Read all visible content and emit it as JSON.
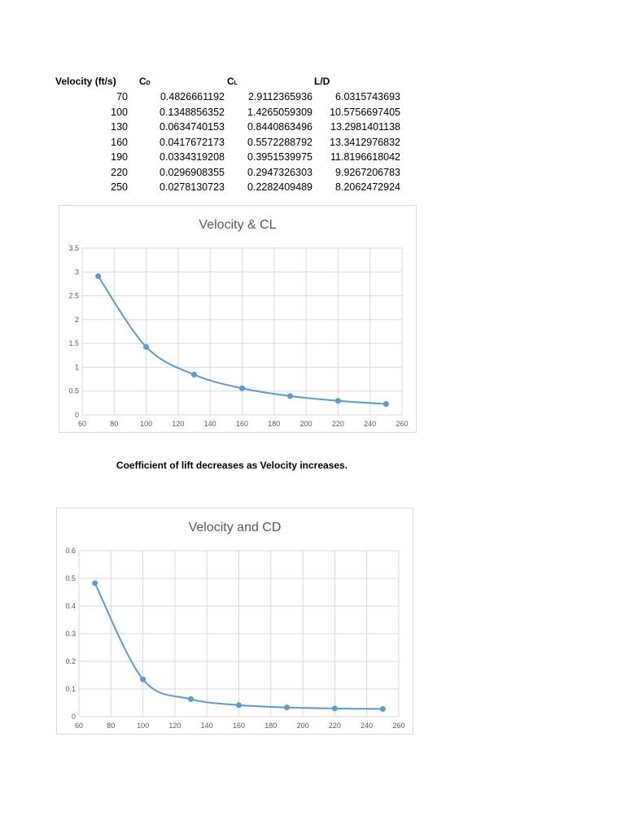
{
  "table": {
    "headers": [
      "Velocity (ft/s)",
      "C",
      "C",
      "L/D"
    ],
    "header_subscripts": [
      "",
      "D",
      "L",
      ""
    ],
    "rows": [
      {
        "velocity": "70",
        "cd": "0.4826661192",
        "cl": "2.9112365936",
        "ld": "6.0315743693"
      },
      {
        "velocity": "100",
        "cd": "0.1348856352",
        "cl": "1.4265059309",
        "ld": "10.5756697405"
      },
      {
        "velocity": "130",
        "cd": "0.0634740153",
        "cl": "0.8440863496",
        "ld": "13.2981401138"
      },
      {
        "velocity": "160",
        "cd": "0.0417672173",
        "cl": "0.5572288792",
        "ld": "13.3412976832"
      },
      {
        "velocity": "190",
        "cd": "0.0334319208",
        "cl": "0.3951539975",
        "ld": "11.8196618042"
      },
      {
        "velocity": "220",
        "cd": "0.0296908355",
        "cl": "0.2947326303",
        "ld": "9.9267206783"
      },
      {
        "velocity": "250",
        "cd": "0.0278130723",
        "cl": "0.2282409489",
        "ld": "8.2062472924"
      }
    ]
  },
  "caption": "Coefficient of lift decreases as Velocity increases.",
  "colors": {
    "series": "#5b9bd5",
    "grid": "#d9d9d9",
    "axis_text": "#595959"
  },
  "chart_data": [
    {
      "type": "line",
      "title": "Velocity & CL",
      "xlabel": "",
      "ylabel": "",
      "x": [
        70,
        100,
        130,
        160,
        190,
        220,
        250
      ],
      "series": [
        {
          "name": "CL",
          "values": [
            2.9112365936,
            1.4265059309,
            0.8440863496,
            0.5572288792,
            0.3951539975,
            0.2947326303,
            0.2282409489
          ]
        }
      ],
      "xlim": [
        60,
        260
      ],
      "ylim": [
        0,
        3.5
      ],
      "xticks": [
        "60",
        "80",
        "100",
        "120",
        "140",
        "160",
        "180",
        "200",
        "220",
        "240",
        "260"
      ],
      "yticks": [
        "0",
        "0.5",
        "1",
        "1.5",
        "2",
        "2.5",
        "3",
        "3.5"
      ],
      "grid": true,
      "smooth": true,
      "legend": "none"
    },
    {
      "type": "line",
      "title": "Velocity and CD",
      "xlabel": "",
      "ylabel": "",
      "x": [
        70,
        100,
        130,
        160,
        190,
        220,
        250
      ],
      "series": [
        {
          "name": "CD",
          "values": [
            0.4826661192,
            0.1348856352,
            0.0634740153,
            0.0417672173,
            0.0334319208,
            0.0296908355,
            0.0278130723
          ]
        }
      ],
      "xlim": [
        60,
        260
      ],
      "ylim": [
        0,
        0.6
      ],
      "xticks": [
        "60",
        "80",
        "100",
        "120",
        "140",
        "160",
        "180",
        "200",
        "220",
        "240",
        "260"
      ],
      "yticks": [
        "0",
        "0.1",
        "0.2",
        "0.3",
        "0.4",
        "0.5",
        "0.6"
      ],
      "grid": true,
      "smooth": true,
      "legend": "none"
    }
  ]
}
